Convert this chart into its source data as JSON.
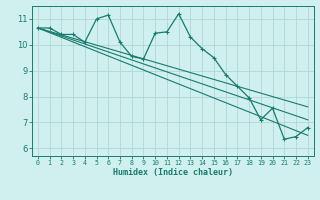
{
  "title": "",
  "xlabel": "Humidex (Indice chaleur)",
  "ylabel": "",
  "bg_color": "#cff0ee",
  "grid_color": "#afd8d4",
  "line_color": "#1a7a6e",
  "xlim": [
    -0.5,
    23.5
  ],
  "ylim": [
    5.7,
    11.5
  ],
  "xticks": [
    0,
    1,
    2,
    3,
    4,
    5,
    6,
    7,
    8,
    9,
    10,
    11,
    12,
    13,
    14,
    15,
    16,
    17,
    18,
    19,
    20,
    21,
    22,
    23
  ],
  "yticks": [
    6,
    7,
    8,
    9,
    10,
    11
  ],
  "series_jagged": {
    "x": [
      0,
      1,
      2,
      3,
      4,
      5,
      6,
      7,
      8,
      9,
      10,
      11,
      12,
      13,
      14,
      15,
      16,
      17,
      18,
      19,
      20,
      21,
      22,
      23
    ],
    "y": [
      10.65,
      10.65,
      10.4,
      10.4,
      10.1,
      11.0,
      11.15,
      10.1,
      9.55,
      9.45,
      10.45,
      10.5,
      11.2,
      10.3,
      9.85,
      9.5,
      8.85,
      8.4,
      7.95,
      7.1,
      7.55,
      6.35,
      6.45,
      6.8
    ]
  },
  "trend_lines": [
    {
      "x": [
        0,
        23
      ],
      "y": [
        10.65,
        6.5
      ]
    },
    {
      "x": [
        0,
        23
      ],
      "y": [
        10.65,
        7.1
      ]
    },
    {
      "x": [
        0,
        23
      ],
      "y": [
        10.65,
        7.6
      ]
    }
  ]
}
